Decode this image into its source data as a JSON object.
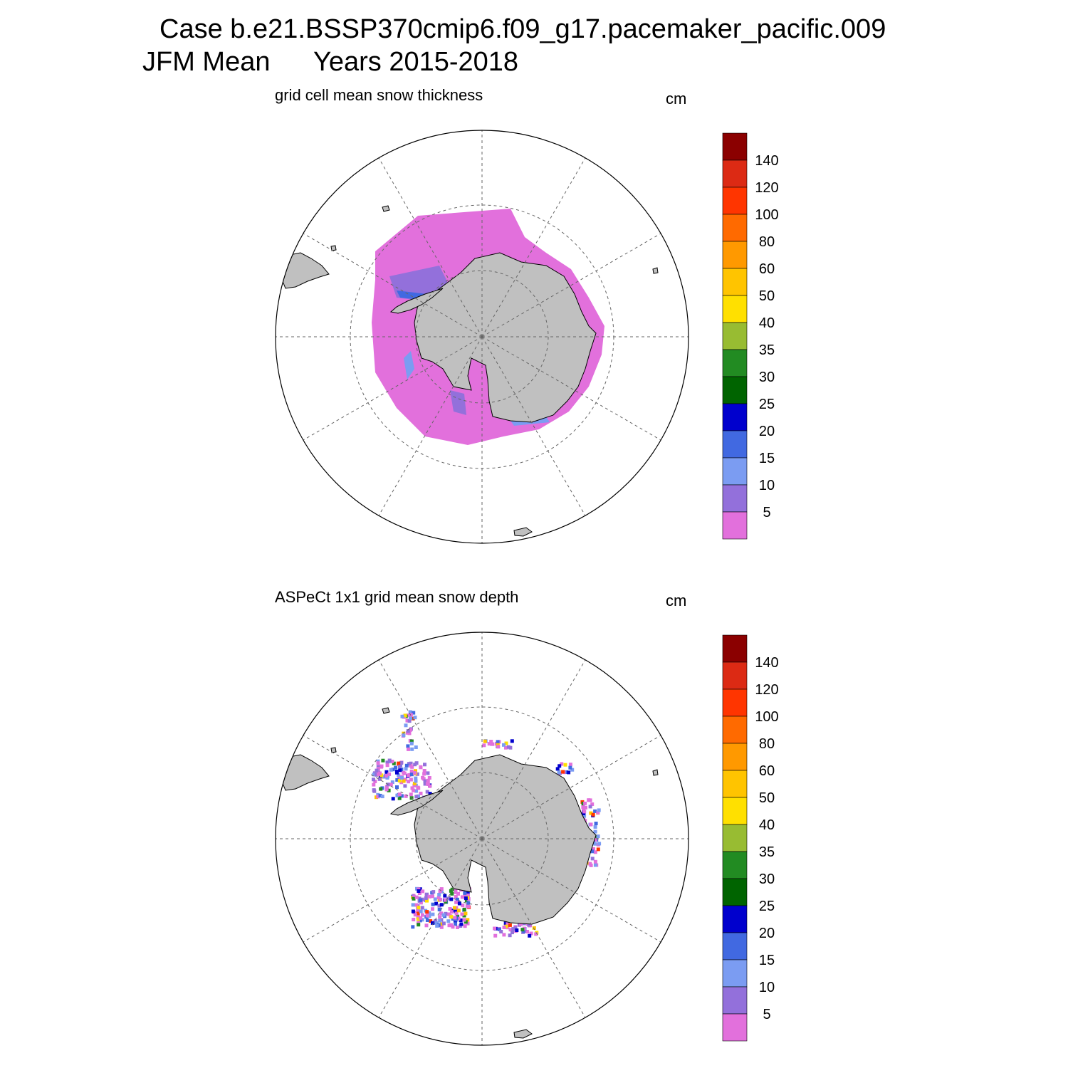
{
  "header": {
    "case_line": "Case b.e21.BSSP370cmip6.f09_g17.pacemaker_pacific.009",
    "period_label": "JFM Mean",
    "years_label": "Years 2015-2018"
  },
  "colors": {
    "land": "#c0c0c0",
    "grid": "#666666",
    "bins": [
      "#e270dc",
      "#9370db",
      "#7b9cf2",
      "#4169e1",
      "#0000cd",
      "#006400",
      "#228b22",
      "#98bc32",
      "#ffe000",
      "#ffc400",
      "#ff9900",
      "#ff6a00",
      "#ff3500",
      "#dc2a14",
      "#8b0000"
    ]
  },
  "colorbar_labels": [
    "5",
    "10",
    "15",
    "20",
    "25",
    "30",
    "35",
    "40",
    "50",
    "60",
    "80",
    "100",
    "120",
    "140"
  ],
  "panels": [
    {
      "title": "grid cell mean snow thickness",
      "unit": "cm",
      "map_type": "south-polar-stereographic",
      "field": "model"
    },
    {
      "title": "ASPeCt 1x1 grid mean snow depth",
      "unit": "cm",
      "map_type": "south-polar-stereographic",
      "field": "observations"
    }
  ]
}
